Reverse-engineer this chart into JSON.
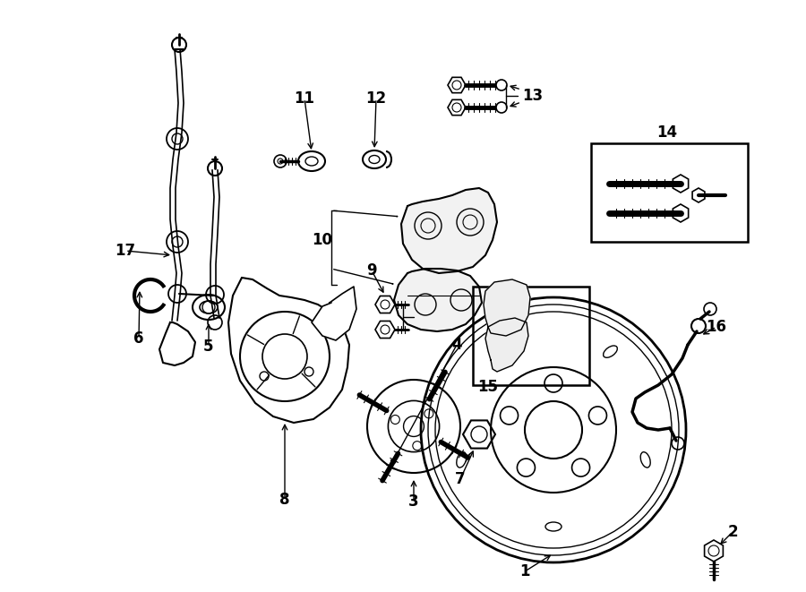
{
  "bg_color": "#ffffff",
  "lc": "#000000",
  "fig_width": 9.0,
  "fig_height": 6.61,
  "dpi": 100,
  "xlim": [
    0,
    900
  ],
  "ylim": [
    0,
    661
  ]
}
